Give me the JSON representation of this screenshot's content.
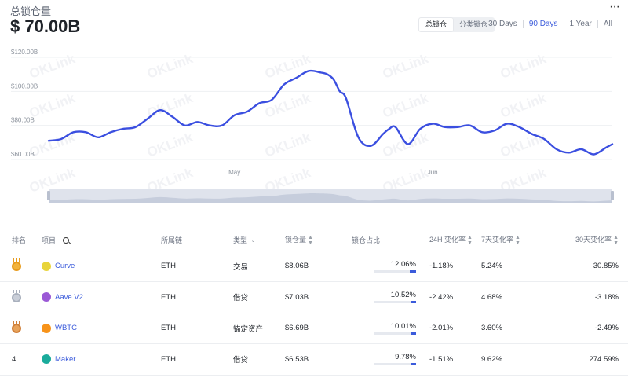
{
  "header": {
    "label": "总锁仓量",
    "value": "$ 70.00B",
    "more": "···"
  },
  "segments": [
    {
      "label": "总锁仓",
      "active": true
    },
    {
      "label": "分类锁仓",
      "active": false
    }
  ],
  "ranges": [
    {
      "label": "30 Days",
      "active": false
    },
    {
      "label": "90 Days",
      "active": true
    },
    {
      "label": "1 Year",
      "active": false
    },
    {
      "label": "All",
      "active": false
    }
  ],
  "chart_data": {
    "type": "line",
    "title": "",
    "xlabel": "",
    "ylabel": "",
    "yticks": [
      "$60.00B",
      "$80.00B",
      "$100.00B",
      "$120.00B"
    ],
    "ylim": [
      60,
      120
    ],
    "xlim": [
      0,
      91
    ],
    "xticks": [
      {
        "label": "May",
        "x": 30
      },
      {
        "label": "Jun",
        "x": 62
      }
    ],
    "line_color": "#3b4fe0",
    "grid": true,
    "watermark": "OKLink",
    "x": [
      0,
      2,
      4,
      6,
      8,
      10,
      12,
      14,
      16,
      18,
      20,
      22,
      24,
      26,
      28,
      30,
      32,
      34,
      36,
      38,
      40,
      42,
      44,
      45,
      46,
      47,
      48,
      50,
      52,
      54,
      55,
      56,
      58,
      60,
      62,
      64,
      66,
      68,
      70,
      72,
      74,
      76,
      78,
      80,
      82,
      84,
      86,
      88,
      90,
      91
    ],
    "values": [
      71,
      72,
      76,
      76,
      73,
      76,
      78,
      79,
      84,
      89,
      85,
      80,
      82,
      80,
      80,
      86,
      88,
      93,
      95,
      104,
      108,
      112,
      111,
      110,
      107,
      100,
      96,
      73,
      68,
      75,
      78,
      79,
      69,
      78,
      81,
      79,
      79,
      80,
      76,
      77,
      81,
      79,
      75,
      72,
      66,
      64,
      66,
      63,
      67,
      69
    ]
  },
  "table": {
    "headers": {
      "rank": "排名",
      "project": "项目",
      "chain": "所属链",
      "type": "类型",
      "tvl": "锁仓量",
      "share": "锁仓占比",
      "h24": "24H 变化率",
      "d7": "7天变化率",
      "d30": "30天变化率"
    },
    "rows": [
      {
        "rank": "",
        "medal": "gold",
        "icon_color": "#e8d43b",
        "project": "Curve",
        "chain": "ETH",
        "type": "交易",
        "tvl": "$8.06B",
        "share": "12.06%",
        "share_value": 12.06,
        "h24": "-1.18%",
        "d7": "5.24%",
        "d30": "30.85%",
        "d30_sign": "pos"
      },
      {
        "rank": "",
        "medal": "silver",
        "icon_color": "#9b59d6",
        "project": "Aave V2",
        "chain": "ETH",
        "type": "借贷",
        "tvl": "$7.03B",
        "share": "10.52%",
        "share_value": 10.52,
        "h24": "-2.42%",
        "d7": "4.68%",
        "d30": "-3.18%",
        "d30_sign": "neg"
      },
      {
        "rank": "",
        "medal": "bronze",
        "icon_color": "#f7931a",
        "project": "WBTC",
        "chain": "ETH",
        "type": "锚定资产",
        "tvl": "$6.69B",
        "share": "10.01%",
        "share_value": 10.01,
        "h24": "-2.01%",
        "d7": "3.60%",
        "d30": "-2.49%",
        "d30_sign": "neg"
      },
      {
        "rank": "4",
        "medal": "",
        "icon_color": "#1aab9b",
        "project": "Maker",
        "chain": "ETH",
        "type": "借贷",
        "tvl": "$6.53B",
        "share": "9.78%",
        "share_value": 9.78,
        "h24": "-1.51%",
        "d7": "9.62%",
        "d30": "274.59%",
        "d30_sign": "pos"
      }
    ]
  }
}
